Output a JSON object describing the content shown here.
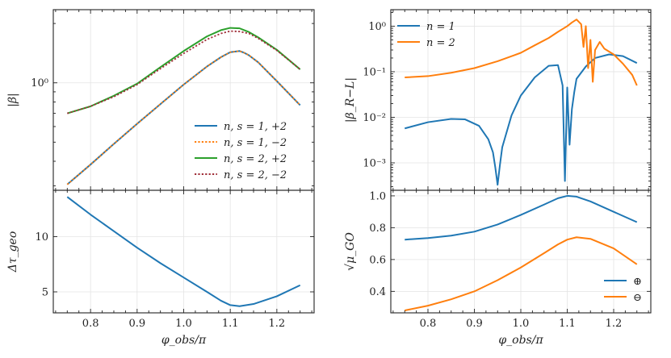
{
  "chart_data": [
    {
      "id": "top-left",
      "type": "line",
      "yscale": "log",
      "ylabel": "|β|",
      "xlim": [
        0.72,
        1.28
      ],
      "ylim": [
        0.285,
        2.35
      ],
      "yticks": [
        {
          "value": 1.0,
          "label": "10⁰"
        }
      ],
      "legend_position": "lower-right",
      "x": [
        0.75,
        0.8,
        0.85,
        0.9,
        0.95,
        1.0,
        1.05,
        1.08,
        1.1,
        1.12,
        1.13,
        1.14,
        1.16,
        1.2,
        1.25
      ],
      "series": [
        {
          "name": "n, s = 1, +2",
          "color": "#1f77b4",
          "dash": "none",
          "values": [
            0.305,
            0.385,
            0.49,
            0.62,
            0.78,
            0.98,
            1.21,
            1.35,
            1.43,
            1.45,
            1.42,
            1.38,
            1.27,
            1.02,
            0.77
          ]
        },
        {
          "name": "n, s = 1, −2",
          "color": "#ff7f0e",
          "dash": "dotted",
          "values": [
            0.305,
            0.385,
            0.49,
            0.62,
            0.78,
            0.98,
            1.21,
            1.35,
            1.43,
            1.45,
            1.42,
            1.38,
            1.27,
            1.02,
            0.77
          ]
        },
        {
          "name": "n, s = 2, +2",
          "color": "#2ca02c",
          "dash": "none",
          "values": [
            0.7,
            0.76,
            0.86,
            0.99,
            1.2,
            1.45,
            1.72,
            1.85,
            1.9,
            1.89,
            1.85,
            1.81,
            1.7,
            1.47,
            1.17
          ]
        },
        {
          "name": "n, s = 2, −2",
          "color": "#a0303a",
          "dash": "dotted",
          "values": [
            0.7,
            0.76,
            0.85,
            0.98,
            1.18,
            1.41,
            1.66,
            1.78,
            1.83,
            1.82,
            1.8,
            1.78,
            1.68,
            1.46,
            1.17
          ]
        }
      ]
    },
    {
      "id": "bottom-left",
      "type": "line",
      "yscale": "linear",
      "ylabel": "Δτ_geo",
      "xlabel": "φ_obs/π",
      "xlim": [
        0.72,
        1.28
      ],
      "ylim": [
        3.1,
        14.2
      ],
      "yticks": [
        {
          "value": 5,
          "label": "5"
        },
        {
          "value": 10,
          "label": "10"
        }
      ],
      "xticks": [
        {
          "value": 0.8,
          "label": "0.8"
        },
        {
          "value": 0.9,
          "label": "0.9"
        },
        {
          "value": 1.0,
          "label": "1.0"
        },
        {
          "value": 1.1,
          "label": "1.1"
        },
        {
          "value": 1.2,
          "label": "1.2"
        }
      ],
      "x": [
        0.75,
        0.8,
        0.85,
        0.9,
        0.95,
        1.0,
        1.05,
        1.08,
        1.1,
        1.12,
        1.15,
        1.2,
        1.25
      ],
      "series": [
        {
          "name": "Δτ_geo",
          "color": "#1f77b4",
          "values": [
            13.6,
            12.0,
            10.5,
            9.0,
            7.6,
            6.3,
            5.0,
            4.2,
            3.8,
            3.7,
            3.9,
            4.6,
            5.6
          ]
        }
      ]
    },
    {
      "id": "top-right",
      "type": "line",
      "yscale": "log",
      "ylabel": "|β_R−L|",
      "xlim": [
        0.72,
        1.28
      ],
      "ylim": [
        0.00025,
        2.3
      ],
      "yticks": [
        {
          "value": 0.001,
          "label": "10⁻³"
        },
        {
          "value": 0.01,
          "label": "10⁻²"
        },
        {
          "value": 0.1,
          "label": "10⁻¹"
        },
        {
          "value": 1,
          "label": "10⁰"
        }
      ],
      "legend_position": "top-left",
      "series": [
        {
          "name": "n = 1",
          "color": "#1f77b4",
          "x": [
            0.75,
            0.8,
            0.85,
            0.88,
            0.91,
            0.93,
            0.94,
            0.945,
            0.95,
            0.955,
            0.96,
            0.98,
            1.0,
            1.03,
            1.06,
            1.08,
            1.09,
            1.095,
            1.1,
            1.105,
            1.11,
            1.115,
            1.12,
            1.14,
            1.16,
            1.19,
            1.22,
            1.25
          ],
          "values": [
            0.0057,
            0.0078,
            0.0092,
            0.009,
            0.0065,
            0.0033,
            0.0017,
            0.0008,
            0.00033,
            0.0009,
            0.0022,
            0.011,
            0.03,
            0.075,
            0.135,
            0.14,
            0.05,
            0.0004,
            0.045,
            0.0025,
            0.015,
            0.035,
            0.07,
            0.13,
            0.2,
            0.24,
            0.22,
            0.155
          ]
        },
        {
          "name": "n = 2",
          "color": "#ff7f0e",
          "x": [
            0.75,
            0.8,
            0.85,
            0.9,
            0.95,
            1.0,
            1.03,
            1.06,
            1.08,
            1.1,
            1.11,
            1.12,
            1.13,
            1.135,
            1.14,
            1.145,
            1.15,
            1.155,
            1.16,
            1.17,
            1.18,
            1.2,
            1.22,
            1.24,
            1.25
          ],
          "values": [
            0.075,
            0.08,
            0.095,
            0.12,
            0.17,
            0.26,
            0.38,
            0.55,
            0.75,
            1.0,
            1.2,
            1.4,
            1.1,
            0.35,
            1.0,
            0.12,
            0.5,
            0.06,
            0.3,
            0.45,
            0.32,
            0.24,
            0.15,
            0.085,
            0.05
          ]
        }
      ]
    },
    {
      "id": "bottom-right",
      "type": "line",
      "yscale": "linear",
      "ylabel": "√μ_GO",
      "xlabel": "φ_obs/π",
      "xlim": [
        0.72,
        1.28
      ],
      "ylim": [
        0.265,
        1.035
      ],
      "yticks": [
        {
          "value": 0.4,
          "label": "0.4"
        },
        {
          "value": 0.6,
          "label": "0.6"
        },
        {
          "value": 0.8,
          "label": "0.8"
        },
        {
          "value": 1.0,
          "label": "1.0"
        }
      ],
      "xticks": [
        {
          "value": 0.8,
          "label": "0.8"
        },
        {
          "value": 0.9,
          "label": "0.9"
        },
        {
          "value": 1.0,
          "label": "1.0"
        },
        {
          "value": 1.1,
          "label": "1.1"
        },
        {
          "value": 1.2,
          "label": "1.2"
        }
      ],
      "legend_position": "lower-right",
      "x": [
        0.75,
        0.8,
        0.85,
        0.9,
        0.95,
        1.0,
        1.05,
        1.08,
        1.1,
        1.12,
        1.15,
        1.2,
        1.25
      ],
      "series": [
        {
          "name": "⊕",
          "color": "#1f77b4",
          "values": [
            0.725,
            0.735,
            0.75,
            0.775,
            0.82,
            0.88,
            0.945,
            0.985,
            1.0,
            0.995,
            0.965,
            0.9,
            0.835
          ]
        },
        {
          "name": "⊖",
          "color": "#ff7f0e",
          "values": [
            0.28,
            0.31,
            0.35,
            0.4,
            0.47,
            0.55,
            0.64,
            0.695,
            0.725,
            0.74,
            0.73,
            0.67,
            0.57
          ]
        }
      ]
    }
  ]
}
